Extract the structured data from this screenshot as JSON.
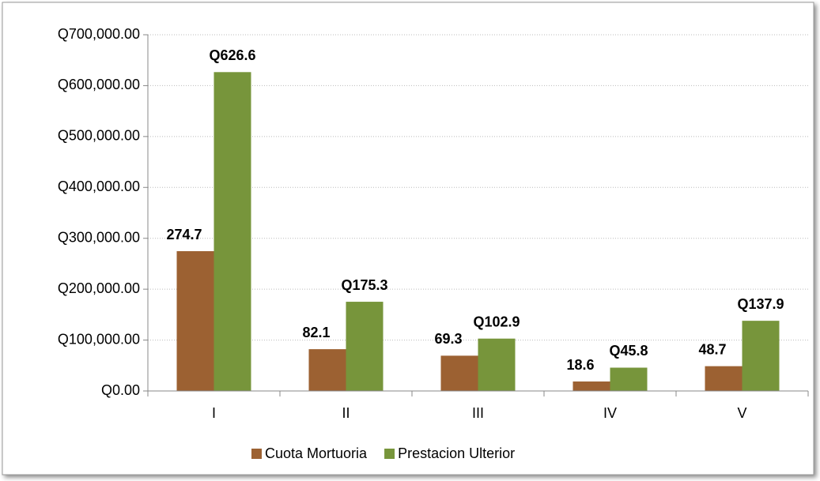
{
  "chart_data": {
    "type": "bar",
    "categories": [
      "I",
      "II",
      "III",
      "IV",
      "V"
    ],
    "series": [
      {
        "name": "Cuota Mortuoria",
        "color": "#9c6132",
        "values": [
          274700,
          82100,
          69300,
          18600,
          48700
        ],
        "value_labels": [
          "274.7",
          "82.1",
          "69.3",
          "18.6",
          "48.7"
        ]
      },
      {
        "name": "Prestacion Ulterior",
        "color": "#77953b",
        "values": [
          626600,
          175300,
          102900,
          45800,
          137900
        ],
        "value_labels": [
          "Q626.6",
          "Q175.3",
          "Q102.9",
          "Q45.8",
          "Q137.9"
        ]
      }
    ],
    "ylim": [
      0,
      700000
    ],
    "yticks": [
      {
        "value": 0,
        "label": "Q0.00"
      },
      {
        "value": 100000,
        "label": "Q100,000.00"
      },
      {
        "value": 200000,
        "label": "Q200,000.00"
      },
      {
        "value": 300000,
        "label": "Q300,000.00"
      },
      {
        "value": 400000,
        "label": "Q400,000.00"
      },
      {
        "value": 500000,
        "label": "Q500,000.00"
      },
      {
        "value": 600000,
        "label": "Q600,000.00"
      },
      {
        "value": 700000,
        "label": "Q700,000.00"
      }
    ],
    "grid": true,
    "legend": "bottom"
  }
}
